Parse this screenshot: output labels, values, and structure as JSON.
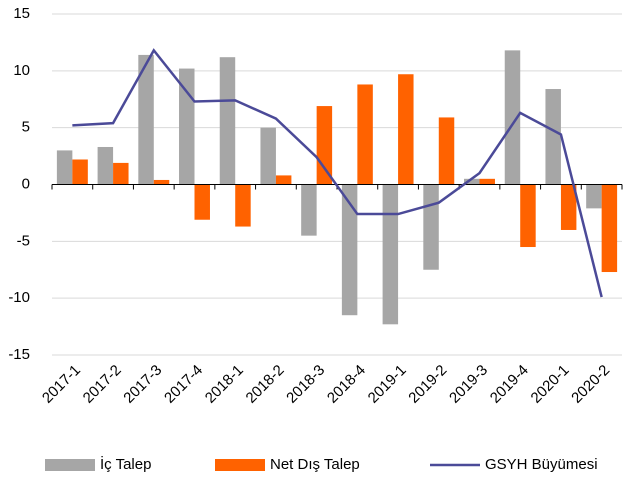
{
  "chart_data": {
    "type": "bar-line",
    "categories": [
      "2017-1",
      "2017-2",
      "2017-3",
      "2017-4",
      "2018-1",
      "2018-2",
      "2018-3",
      "2018-4",
      "2019-1",
      "2019-2",
      "2019-3",
      "2019-4",
      "2020-1",
      "2020-2"
    ],
    "series": [
      {
        "name": "İç Talep",
        "type": "bar",
        "color": "#a6a6a6",
        "values": [
          3.0,
          3.3,
          11.4,
          10.2,
          11.2,
          5.0,
          -4.5,
          -11.5,
          -12.3,
          -7.5,
          0.5,
          11.8,
          8.4,
          -2.1
        ]
      },
      {
        "name": "Net Dış Talep",
        "type": "bar",
        "color": "#ff6200",
        "values": [
          2.2,
          1.9,
          0.4,
          -3.1,
          -3.7,
          0.8,
          6.9,
          8.8,
          9.7,
          5.9,
          0.5,
          -5.5,
          -4.0,
          -7.7
        ]
      },
      {
        "name": "GSYH Büyümesi",
        "type": "line",
        "color": "#4b4a98",
        "values": [
          5.2,
          5.4,
          11.8,
          7.3,
          7.4,
          5.8,
          2.4,
          -2.6,
          -2.6,
          -1.6,
          1.0,
          6.3,
          4.4,
          -9.9
        ]
      }
    ],
    "ylim": [
      -15,
      15
    ],
    "yticks": [
      -15,
      -10,
      -5,
      0,
      5,
      10,
      15
    ],
    "grid": true
  }
}
